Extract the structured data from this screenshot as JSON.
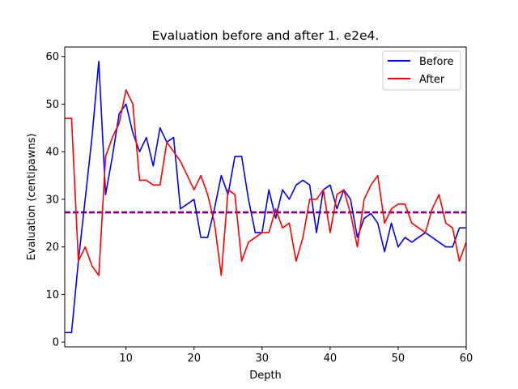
{
  "chart_data": {
    "type": "line",
    "title": "Evaluation before and after 1. e2e4.",
    "xlabel": "Depth",
    "ylabel": "Evaluation (centipawns)",
    "xlim": [
      1,
      60
    ],
    "ylim": [
      -1,
      62
    ],
    "xticks": [
      10,
      20,
      30,
      40,
      50,
      60
    ],
    "yticks": [
      0,
      10,
      20,
      30,
      40,
      50,
      60
    ],
    "grid": false,
    "legend_position": "top-right",
    "x": [
      1,
      2,
      3,
      4,
      5,
      6,
      7,
      8,
      9,
      10,
      11,
      12,
      13,
      14,
      15,
      16,
      17,
      18,
      19,
      20,
      21,
      22,
      23,
      24,
      25,
      26,
      27,
      28,
      29,
      30,
      31,
      32,
      33,
      34,
      35,
      36,
      37,
      38,
      39,
      40,
      41,
      42,
      43,
      44,
      45,
      46,
      47,
      48,
      49,
      50,
      51,
      52,
      53,
      54,
      55,
      56,
      57,
      58,
      59,
      60
    ],
    "series": [
      {
        "name": "Before",
        "color": "#0000ff",
        "values": [
          2,
          2,
          17,
          30,
          43,
          59,
          31,
          39,
          48,
          50,
          44,
          40,
          43,
          37,
          45,
          42,
          43,
          28,
          29,
          30,
          22,
          22,
          28,
          35,
          31,
          39,
          39,
          30,
          23,
          23,
          32,
          26,
          32,
          30,
          33,
          34,
          33,
          23,
          32,
          33,
          28,
          32,
          30,
          22,
          26,
          27,
          25,
          19,
          25,
          20,
          22,
          21,
          22,
          23,
          22,
          21,
          20,
          20,
          24,
          24
        ]
      },
      {
        "name": "After",
        "color": "#ff0000",
        "values": [
          47,
          47,
          17,
          20,
          16,
          14,
          39,
          43,
          46,
          53,
          50,
          34,
          34,
          33,
          33,
          42,
          40,
          38,
          35,
          32,
          35,
          31,
          25,
          14,
          32,
          31,
          17,
          21,
          22,
          23,
          23,
          28,
          24,
          25,
          17,
          22,
          30,
          30,
          32,
          23,
          31,
          32,
          27,
          20,
          30,
          33,
          35,
          25,
          28,
          29,
          29,
          25,
          24,
          23,
          28,
          31,
          25,
          24,
          17,
          21
        ]
      }
    ],
    "reference_lines": [
      {
        "series": "Before",
        "color": "#0000ff",
        "y": 27.3,
        "style": "dashed"
      },
      {
        "series": "After",
        "color": "#ff0000",
        "y": 27.2,
        "style": "dashed"
      },
      {
        "series": "overlap",
        "color": "#800080",
        "y": 27.25,
        "style": "dashed"
      }
    ]
  }
}
